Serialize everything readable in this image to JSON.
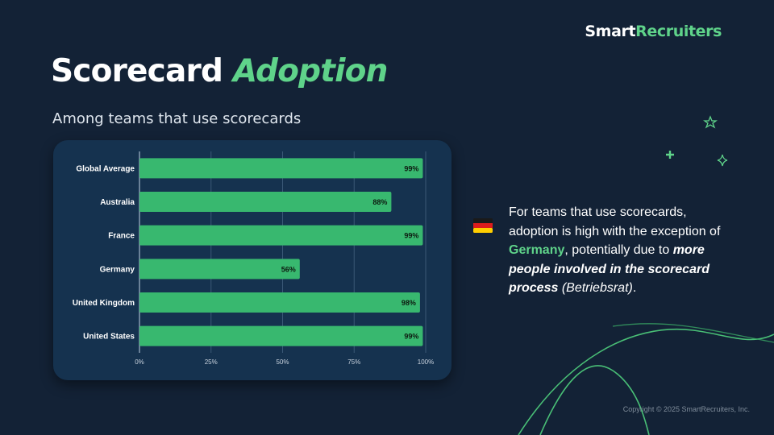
{
  "brand": {
    "part1": "Smart",
    "part2": "Recruiters"
  },
  "title": {
    "part1": "Scorecard",
    "part2": "Adoption"
  },
  "subtitle": "Among teams that use scorecards",
  "chart_data": {
    "type": "bar",
    "orientation": "horizontal",
    "categories": [
      "Global Average",
      "Australia",
      "France",
      "Germany",
      "United Kingdom",
      "United States"
    ],
    "values": [
      99,
      88,
      99,
      56,
      98,
      99
    ],
    "value_labels": [
      "99%",
      "88%",
      "99%",
      "56%",
      "98%",
      "99%"
    ],
    "xlim": [
      0,
      100
    ],
    "xticks": [
      "0%",
      "25%",
      "50%",
      "75%",
      "100%"
    ],
    "tick_values": [
      0,
      25,
      50,
      75,
      100
    ],
    "grid": true,
    "title": "",
    "xlabel": "",
    "ylabel": ""
  },
  "callout": {
    "line1": "For teams that use scorecards, adoption is high with the exception of ",
    "highlight": "Germany",
    "line2": ", potentially due to ",
    "emphasis": "more people involved in the scorecard process",
    "note": "(Betriebsrat)",
    "end": "."
  },
  "icons": {
    "flag": "germany-flag-icon",
    "sparkles": [
      "star-outline-icon",
      "plus-icon",
      "diamond-sparkle-icon"
    ]
  },
  "colors": {
    "background": "#132236",
    "card": "#15324f",
    "bar": "#38b86f",
    "accent": "#5fd38a",
    "gridline": "#3a5876"
  },
  "footer": {
    "copyright": "Copyright © 2025 SmartRecruiters, Inc."
  }
}
